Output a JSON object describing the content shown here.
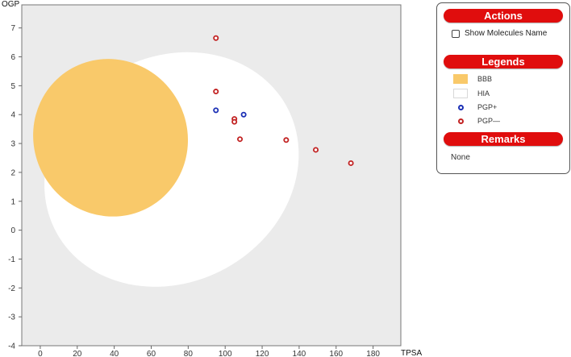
{
  "chart_data": {
    "type": "scatter",
    "xlabel": "TPSA",
    "ylabel": "OGP",
    "xlim": [
      -10,
      195
    ],
    "ylim": [
      -4,
      7.8
    ],
    "x_ticks": [
      0,
      20,
      40,
      60,
      80,
      100,
      120,
      140,
      160,
      180
    ],
    "y_ticks": [
      -4,
      -3,
      -2,
      -1,
      0,
      1,
      2,
      3,
      4,
      5,
      6,
      7
    ],
    "regions": [
      {
        "name": "HIA",
        "shape": "ellipse",
        "cx": 71,
        "cy": 2.1,
        "rx": 142,
        "ry": 7.8,
        "angle_deg": -29,
        "color": "#ffffff"
      },
      {
        "name": "BBB",
        "shape": "ellipse",
        "cx": 38,
        "cy": 3.2,
        "rx": 83,
        "ry": 5.5,
        "angle_deg": -29,
        "color": "#f9c96a"
      }
    ],
    "series": [
      {
        "name": "PGP+",
        "color": "#1b2fb5",
        "points": [
          [
            95,
            4.15
          ],
          [
            110,
            4.0
          ]
        ]
      },
      {
        "name": "PGP—",
        "color": "#c22222",
        "points": [
          [
            95,
            6.65
          ],
          [
            95,
            4.8
          ],
          [
            105,
            3.85
          ],
          [
            105,
            3.75
          ],
          [
            108,
            3.15
          ],
          [
            133,
            3.12
          ],
          [
            149,
            2.78
          ],
          [
            168,
            2.32
          ]
        ]
      }
    ],
    "grid": false
  },
  "colors": {
    "plot_bg": "#ebebeb",
    "banner": "#e00d0d",
    "bbb": "#f9c96a",
    "pgp_plus": "#1b2fb5",
    "pgp_minus": "#c22222"
  },
  "panel": {
    "actions_title": "Actions",
    "show_names_label": "Show Molecules Name",
    "show_names_checked": false,
    "legends_title": "Legends",
    "legend_items": [
      {
        "label": "BBB",
        "kind": "swatch",
        "color": "#f9c96a"
      },
      {
        "label": "HIA",
        "kind": "swatch",
        "color": "#ffffff"
      },
      {
        "label": "PGP+",
        "kind": "dot",
        "color": "#1b2fb5"
      },
      {
        "label": "PGP—",
        "kind": "dot",
        "color": "#c22222"
      }
    ],
    "remarks_title": "Remarks",
    "remarks_text": "None"
  }
}
